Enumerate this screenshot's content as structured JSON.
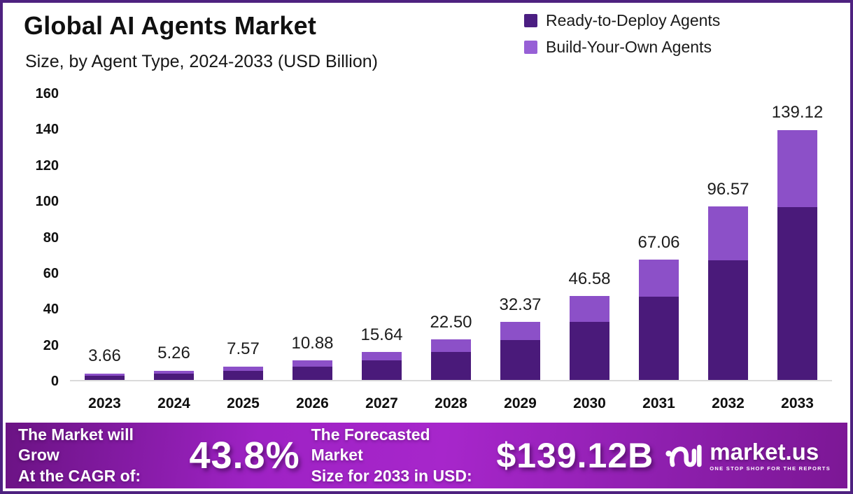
{
  "frame": {
    "border_color": "#4E2180",
    "background": "#FFFFFF"
  },
  "header": {
    "title": "Global AI Agents Market",
    "subtitle": "Size, by Agent Type, 2024-2033 (USD Billion)"
  },
  "legend": {
    "items": [
      {
        "label": "Ready-to-Deploy Agents",
        "color": "#4B1E82"
      },
      {
        "label": "Build-Your-Own Agents",
        "color": "#9760D6"
      }
    ]
  },
  "chart_data": {
    "type": "bar",
    "stacked": true,
    "title": "Global AI Agents Market Size, by Agent Type, 2024-2033 (USD Billion)",
    "categories": [
      "2023",
      "2024",
      "2025",
      "2026",
      "2027",
      "2028",
      "2029",
      "2030",
      "2031",
      "2032",
      "2033"
    ],
    "totals": [
      3.66,
      5.26,
      7.57,
      10.88,
      15.64,
      22.5,
      32.37,
      46.58,
      67.06,
      96.57,
      139.12
    ],
    "total_labels": [
      "3.66",
      "5.26",
      "7.57",
      "10.88",
      "15.64",
      "22.50",
      "32.37",
      "46.58",
      "67.06",
      "96.57",
      "139.12"
    ],
    "series": [
      {
        "name": "Ready-to-Deploy Agents",
        "color": "#4A1A7A",
        "values": [
          2.53,
          3.63,
          5.22,
          7.51,
          10.79,
          15.52,
          22.34,
          32.14,
          46.27,
          66.63,
          95.99
        ]
      },
      {
        "name": "Build-Your-Own Agents",
        "color": "#8C50C8",
        "values": [
          1.13,
          1.63,
          2.35,
          3.37,
          4.85,
          6.98,
          10.03,
          14.44,
          20.79,
          29.94,
          43.13
        ]
      }
    ],
    "xlabel": "",
    "ylabel": "",
    "ylim": [
      0,
      160
    ],
    "yticks": [
      0,
      20,
      40,
      60,
      80,
      100,
      120,
      140,
      160
    ],
    "grid": false,
    "baseline_color": "#DADADA",
    "legend_position": "top-right"
  },
  "banner": {
    "cagr_label_line1": "The Market will Grow",
    "cagr_label_line2": "At the CAGR of:",
    "cagr_value": "43.8%",
    "forecast_label_line1": "The Forecasted Market",
    "forecast_label_line2": "Size for 2033 in USD:",
    "forecast_value": "$139.12B",
    "logo": {
      "name": "market.us",
      "tagline": "ONE STOP SHOP FOR THE REPORTS"
    },
    "gradient": [
      "#6B1384",
      "#A726CB",
      "#7C1795"
    ]
  }
}
